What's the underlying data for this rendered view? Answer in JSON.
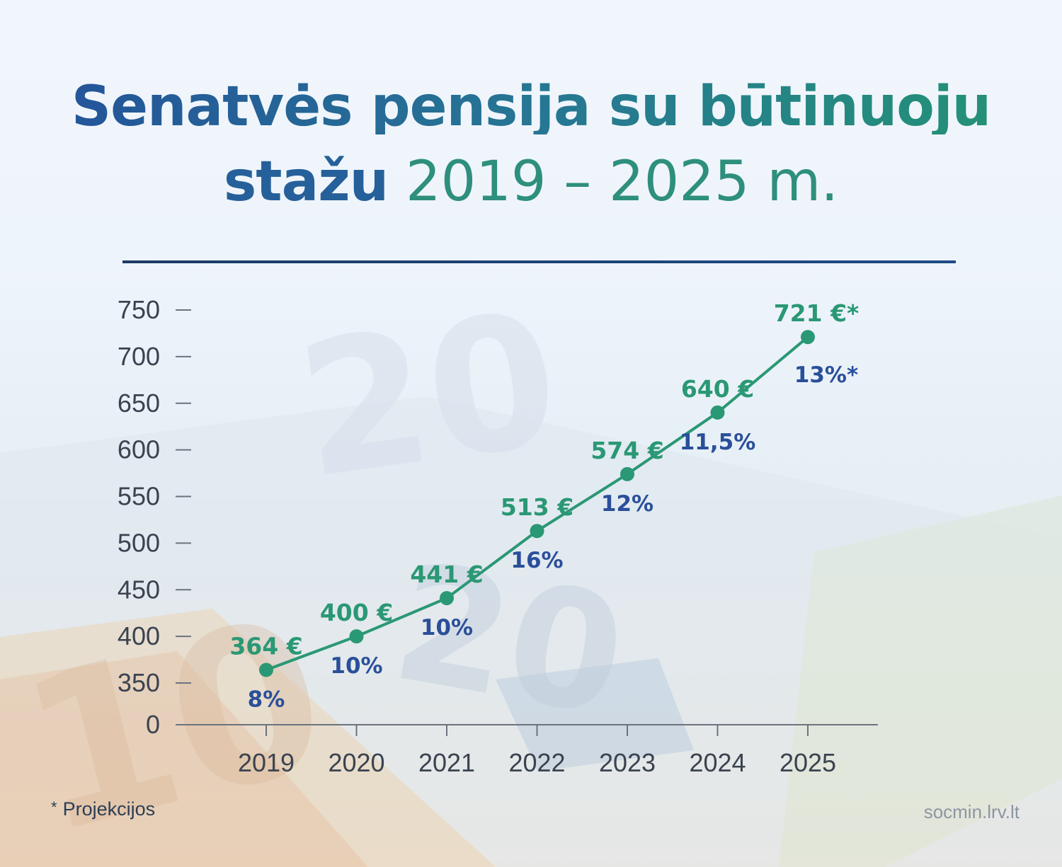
{
  "title": {
    "line1": "Senatvės pensija su būtinuoju",
    "line2_bold": "stažu",
    "line2_light": "2019 – 2025 m."
  },
  "chart_data": {
    "type": "line",
    "x": [
      "2019",
      "2020",
      "2021",
      "2022",
      "2023",
      "2024",
      "2025"
    ],
    "series": [
      {
        "values": [
          364,
          400,
          441,
          513,
          574,
          640,
          721
        ],
        "value_labels": [
          "364 €",
          "400 €",
          "441 €",
          "513 €",
          "574 €",
          "640 €",
          "721 €*"
        ],
        "growth_labels": [
          "8%",
          "10%",
          "10%",
          "16%",
          "12%",
          "11,5%",
          "13%*"
        ]
      }
    ],
    "y_ticks": [
      0,
      350,
      400,
      450,
      500,
      550,
      600,
      650,
      700,
      750
    ],
    "ylim": [
      300,
      750
    ],
    "y_axis_break": true,
    "xlabel": "",
    "ylabel": "",
    "grid": false,
    "colors": {
      "line": "#2a9874",
      "value_label": "#2a9874",
      "growth_label": "#2a4f9a",
      "axis": "#6b737d",
      "tick_label": "#3b4350"
    }
  },
  "footnote": {
    "star": "*",
    "text": "Projekcijos"
  },
  "source": "socmin.lrv.lt"
}
